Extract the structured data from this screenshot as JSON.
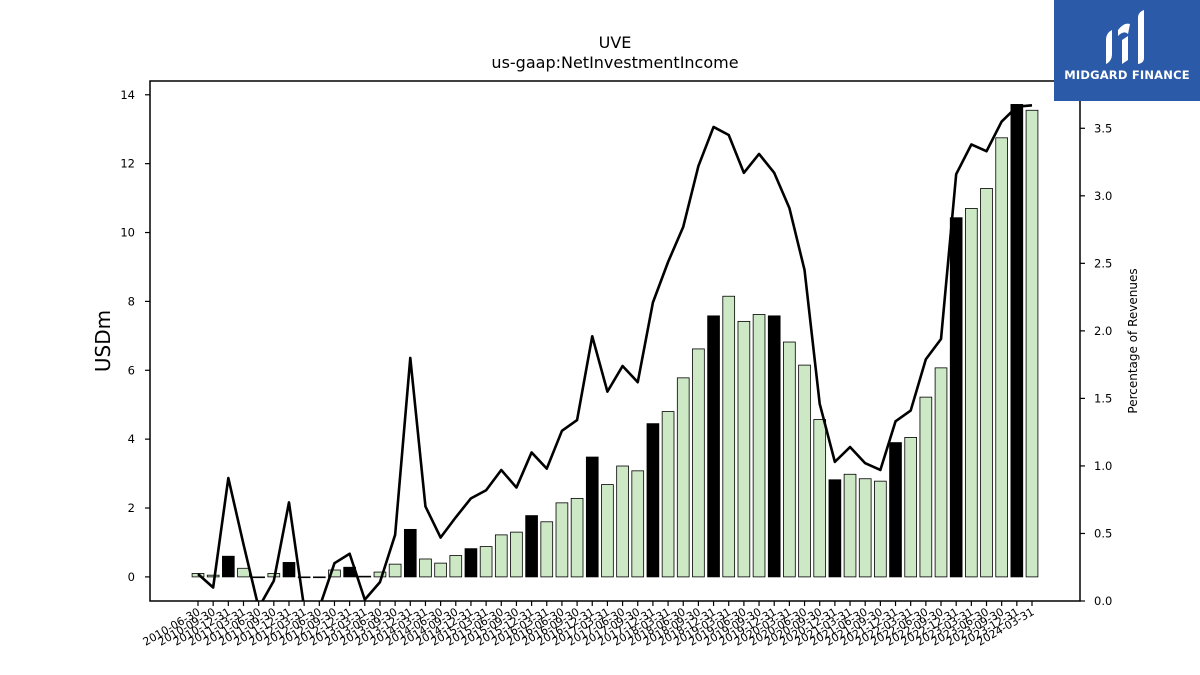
{
  "brand": {
    "name": "MIDGARD FINANCE",
    "color": "#2a5aa8"
  },
  "chart_data": {
    "type": "bar",
    "title": "UVE",
    "subtitle": "us-gaap:NetInvestmentIncome",
    "ylabel": "USDm",
    "y2label": "Percentage of Revenues",
    "ylim": [
      -0.7,
      14.4
    ],
    "y2lim": [
      0.0,
      3.85
    ],
    "yticks": [
      0,
      2,
      4,
      6,
      8,
      10,
      12,
      14
    ],
    "y2ticks": [
      0.0,
      0.5,
      1.0,
      1.5,
      2.0,
      2.5,
      3.0,
      3.5
    ],
    "grid": false,
    "colors": {
      "annual_bar": "#000000",
      "quarter_bar": "#cde8c5",
      "line": "#000000"
    },
    "categories": [
      "2010-06-30",
      "2010-09-30",
      "2010-12-31",
      "2011-03-31",
      "2011-06-30",
      "2011-09-30",
      "2011-12-31",
      "2012-03-31",
      "2012-06-30",
      "2012-09-30",
      "2012-12-31",
      "2013-03-31",
      "2013-06-30",
      "2013-09-30",
      "2013-12-31",
      "2014-03-31",
      "2014-06-30",
      "2014-09-30",
      "2014-12-31",
      "2015-03-31",
      "2015-06-30",
      "2015-09-30",
      "2015-12-31",
      "2016-03-31",
      "2016-06-30",
      "2016-09-30",
      "2016-12-31",
      "2017-03-31",
      "2017-06-30",
      "2017-09-30",
      "2017-12-31",
      "2018-03-31",
      "2018-06-30",
      "2018-09-30",
      "2018-12-31",
      "2019-03-31",
      "2019-06-30",
      "2019-09-30",
      "2019-12-31",
      "2020-03-31",
      "2020-06-30",
      "2020-09-30",
      "2020-12-31",
      "2021-03-31",
      "2021-06-30",
      "2021-09-30",
      "2021-12-31",
      "2022-03-31",
      "2022-06-30",
      "2022-09-30",
      "2022-12-31",
      "2023-03-31",
      "2023-06-30",
      "2023-09-30",
      "2023-12-31",
      "2024-03-31"
    ],
    "series": [
      {
        "kind": "bar",
        "values": [
          0.1,
          0.05,
          0.6,
          0.25,
          -0.02,
          0.1,
          0.42,
          -0.02,
          -0.02,
          0.2,
          0.28,
          0.02,
          0.14,
          0.37,
          1.38,
          0.52,
          0.4,
          0.62,
          0.82,
          0.88,
          1.22,
          1.3,
          1.78,
          1.6,
          2.15,
          2.28,
          3.48,
          2.68,
          3.22,
          3.08,
          4.45,
          4.8,
          5.78,
          6.62,
          7.58,
          8.15,
          7.42,
          7.62,
          7.58,
          6.82,
          6.15,
          4.57,
          2.82,
          2.98,
          2.85,
          2.78,
          3.9,
          4.05,
          5.22,
          6.07,
          10.43,
          10.7,
          11.28,
          12.75,
          13.72,
          13.55
        ],
        "annual": [
          false,
          false,
          true,
          false,
          false,
          false,
          true,
          false,
          false,
          false,
          true,
          false,
          false,
          false,
          true,
          false,
          false,
          false,
          true,
          false,
          false,
          false,
          true,
          false,
          false,
          false,
          true,
          false,
          false,
          false,
          true,
          false,
          false,
          false,
          true,
          false,
          false,
          false,
          true,
          false,
          false,
          false,
          true,
          false,
          false,
          false,
          true,
          false,
          false,
          false,
          true,
          false,
          false,
          false,
          true,
          false
        ]
      },
      {
        "kind": "line",
        "axis": "right",
        "values": [
          0.2,
          0.1,
          0.91,
          0.42,
          -0.05,
          0.15,
          0.73,
          -0.05,
          -0.05,
          0.28,
          0.35,
          0.01,
          0.14,
          0.49,
          1.8,
          0.7,
          0.47,
          0.62,
          0.76,
          0.82,
          0.97,
          0.84,
          1.1,
          0.98,
          1.26,
          1.34,
          1.96,
          1.55,
          1.74,
          1.62,
          2.21,
          2.51,
          2.77,
          3.22,
          3.51,
          3.45,
          3.17,
          3.31,
          3.17,
          2.91,
          2.45,
          1.46,
          1.03,
          1.14,
          1.02,
          0.97,
          1.33,
          1.41,
          1.79,
          1.94,
          3.16,
          3.38,
          3.33,
          3.55,
          3.66,
          3.67
        ]
      }
    ]
  }
}
